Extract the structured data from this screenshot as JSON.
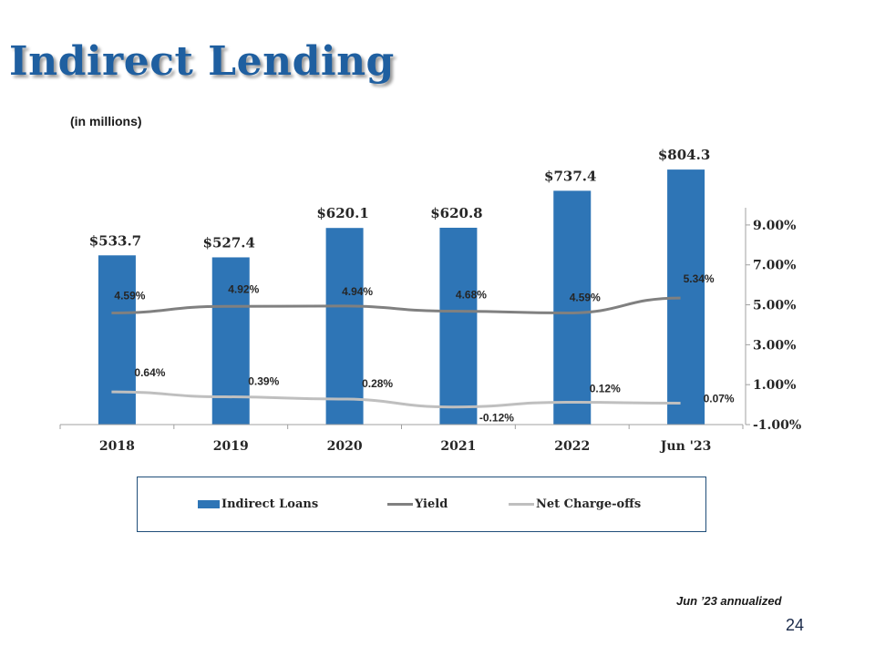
{
  "header": {
    "title": "Indirect Lending",
    "subtitle": "(in millions)"
  },
  "chart_data": {
    "type": "bar",
    "categories": [
      "2018",
      "2019",
      "2020",
      "2021",
      "2022",
      "Jun '23"
    ],
    "series": [
      {
        "name": "Indirect Loans",
        "kind": "bar",
        "axis": "left",
        "color": "#2e75b6",
        "values": [
          533.7,
          527.4,
          620.1,
          620.8,
          737.4,
          804.3
        ],
        "labels": [
          "$533.7",
          "$527.4",
          "$620.1",
          "$620.8",
          "$737.4",
          "$804.3"
        ]
      },
      {
        "name": "Yield",
        "kind": "line",
        "axis": "right",
        "color": "#808080",
        "values": [
          4.59,
          4.92,
          4.94,
          4.68,
          4.59,
          5.34
        ],
        "labels": [
          "4.59%",
          "4.92%",
          "4.94%",
          "4.68%",
          "4.59%",
          "5.34%"
        ]
      },
      {
        "name": "Net Charge-offs",
        "kind": "line",
        "axis": "right",
        "color": "#bfbfbf",
        "values": [
          0.64,
          0.39,
          0.28,
          -0.12,
          0.12,
          0.07
        ],
        "labels": [
          "0.64%",
          "0.39%",
          "0.28%",
          "-0.12%",
          "0.12%",
          "0.07%"
        ]
      }
    ],
    "y_right": {
      "min": -1.0,
      "max": 10.0,
      "ticks": [
        9.0,
        7.0,
        5.0,
        3.0,
        1.0,
        -1.0
      ],
      "tick_labels": [
        "9.00%",
        "7.00%",
        "5.00%",
        "3.00%",
        "1.00%",
        "-1.00%"
      ]
    },
    "y_left": {
      "min": 0,
      "max": 1000,
      "visible": false
    },
    "legend_position": "bottom",
    "grid": false
  },
  "legend": {
    "items": [
      {
        "label": "Indirect Loans",
        "swatch": "bar",
        "color": "#2e75b6"
      },
      {
        "label": "Yield",
        "swatch": "line",
        "color": "#808080"
      },
      {
        "label": "Net Charge-offs",
        "swatch": "line",
        "color": "#bfbfbf"
      }
    ]
  },
  "footer": {
    "note": "Jun ’23 annualized",
    "page_number": "24"
  }
}
